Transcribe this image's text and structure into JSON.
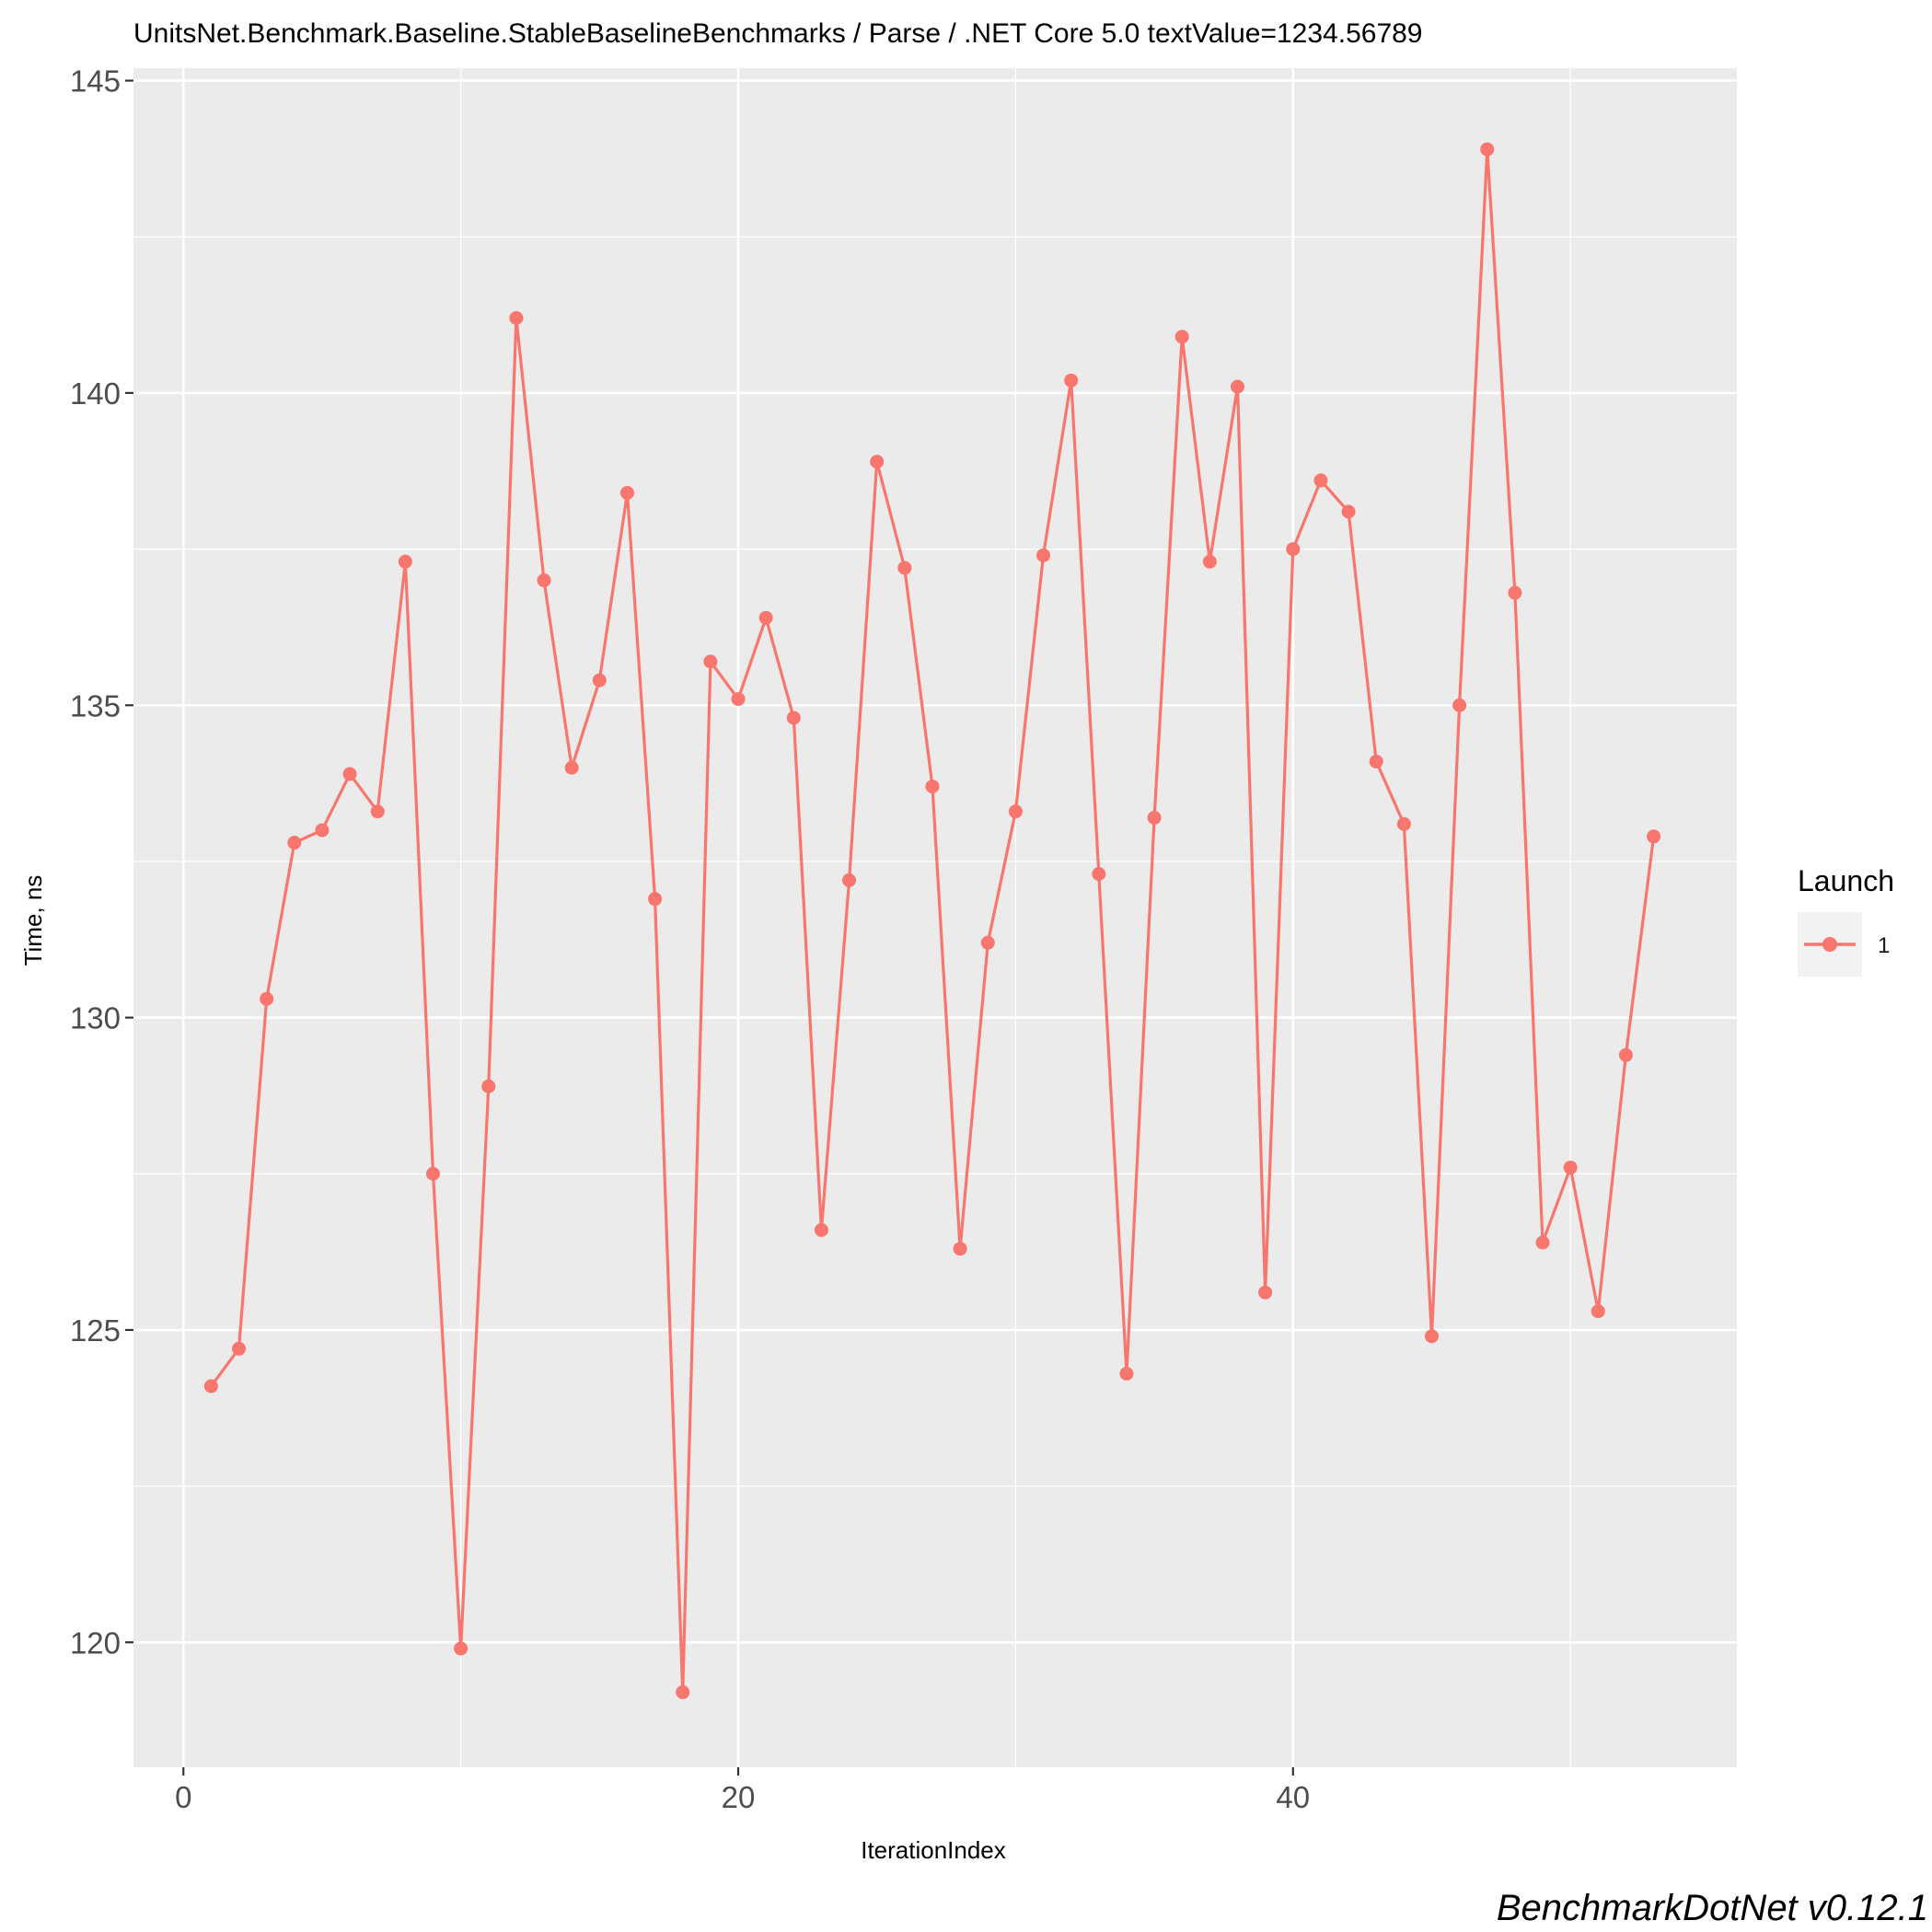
{
  "chart_data": {
    "type": "line",
    "title": "UnitsNet.Benchmark.Baseline.StableBaselineBenchmarks / Parse / .NET Core 5.0 textValue=1234.56789",
    "xlabel": "IterationIndex",
    "ylabel": "Time, ns",
    "xlim": [
      -1.8,
      56.0
    ],
    "ylim": [
      118.0,
      145.2
    ],
    "x_ticks": [
      0,
      20,
      40
    ],
    "x_tick_labels": [
      "0",
      "20",
      "40"
    ],
    "y_ticks": [
      120,
      125,
      130,
      135,
      140,
      145
    ],
    "y_tick_labels": [
      "120",
      "125",
      "130",
      "135",
      "140",
      "145"
    ],
    "grid": true,
    "legend": {
      "title": "Launch",
      "position": "right"
    },
    "series": [
      {
        "name": "1",
        "color": "#F8766D",
        "x": [
          1,
          2,
          3,
          4,
          5,
          6,
          7,
          8,
          9,
          10,
          11,
          12,
          13,
          14,
          15,
          16,
          17,
          18,
          19,
          20,
          21,
          22,
          23,
          24,
          25,
          26,
          27,
          28,
          29,
          30,
          31,
          32,
          33,
          34,
          35,
          36,
          37,
          38,
          39,
          40,
          41,
          42,
          43,
          44,
          45,
          46,
          47,
          48,
          49,
          50,
          51,
          52,
          53
        ],
        "values": [
          124.1,
          124.7,
          130.3,
          132.8,
          133.0,
          133.9,
          133.3,
          137.3,
          127.5,
          119.9,
          128.9,
          141.2,
          137.0,
          134.0,
          135.4,
          138.4,
          131.9,
          119.2,
          135.7,
          135.1,
          136.4,
          134.8,
          126.6,
          132.2,
          138.9,
          137.2,
          133.7,
          126.3,
          131.2,
          133.3,
          137.4,
          140.2,
          132.3,
          124.3,
          133.2,
          140.9,
          137.3,
          140.1,
          125.6,
          137.5,
          138.6,
          138.1,
          134.1,
          133.1,
          124.9,
          135.0,
          143.9,
          136.8,
          126.4,
          127.6,
          125.3,
          129.4,
          132.9
        ]
      }
    ]
  },
  "caption": "BenchmarkDotNet v0.12.1"
}
